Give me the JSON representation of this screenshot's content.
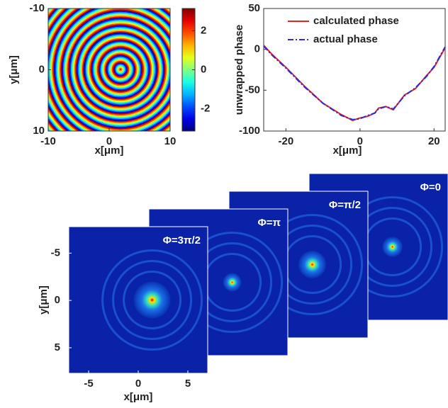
{
  "chart_data": [
    {
      "type": "heatmap",
      "xlabel": "x[μm]",
      "ylabel": "y[μm]",
      "xlim": [
        -10,
        10
      ],
      "ylim": [
        -10,
        10
      ],
      "y_inverted": true,
      "xticks": [
        -10,
        0,
        10
      ],
      "yticks": [
        -10,
        0,
        10
      ],
      "colormap": "jet",
      "colorbar": {
        "lim": [
          -3.14,
          3.14
        ],
        "ticks": [
          2,
          0,
          -2
        ]
      }
    },
    {
      "type": "line",
      "ylabel": "unwrapped phase",
      "xlabel": "x[μm]",
      "xlim": [
        -26,
        23
      ],
      "ylim": [
        -100,
        50
      ],
      "xticks": [
        -20,
        0,
        20
      ],
      "yticks": [
        -100,
        -50,
        0,
        50
      ],
      "legend": "upper right",
      "x": [
        -26,
        -24,
        -20,
        -15,
        -10,
        -5,
        -2,
        0,
        2,
        4,
        5,
        7,
        9,
        12,
        15,
        18,
        20,
        23
      ],
      "series": [
        {
          "name": "calculated phase",
          "color": "#e8211d",
          "style": "solid",
          "values": [
            5,
            -5,
            -22,
            -45,
            -66,
            -80,
            -87,
            -84,
            -82,
            -78,
            -72,
            -70,
            -74,
            -56,
            -48,
            -32,
            -22,
            2
          ]
        },
        {
          "name": "actual phase",
          "color": "#2a2ad8",
          "style": "dashdot",
          "values": [
            4,
            -6,
            -23,
            -46,
            -66,
            -81,
            -86,
            -85,
            -81,
            -78,
            -73,
            -70,
            -73,
            -57,
            -47,
            -33,
            -21,
            3
          ]
        }
      ]
    },
    {
      "type": "image-stack",
      "xlabel": "x[μm]",
      "ylabel": "y[μm]",
      "xlim": [
        -7,
        7
      ],
      "ylim": [
        -7.8,
        7.7
      ],
      "y_inverted": true,
      "xticks": [
        -5,
        0,
        5
      ],
      "yticks": [
        -5,
        0,
        5
      ],
      "panels": [
        {
          "label": "Φ=0"
        },
        {
          "label": "Φ=π/2"
        },
        {
          "label": "Φ=π"
        },
        {
          "label": "Φ=3π/2"
        }
      ]
    }
  ]
}
